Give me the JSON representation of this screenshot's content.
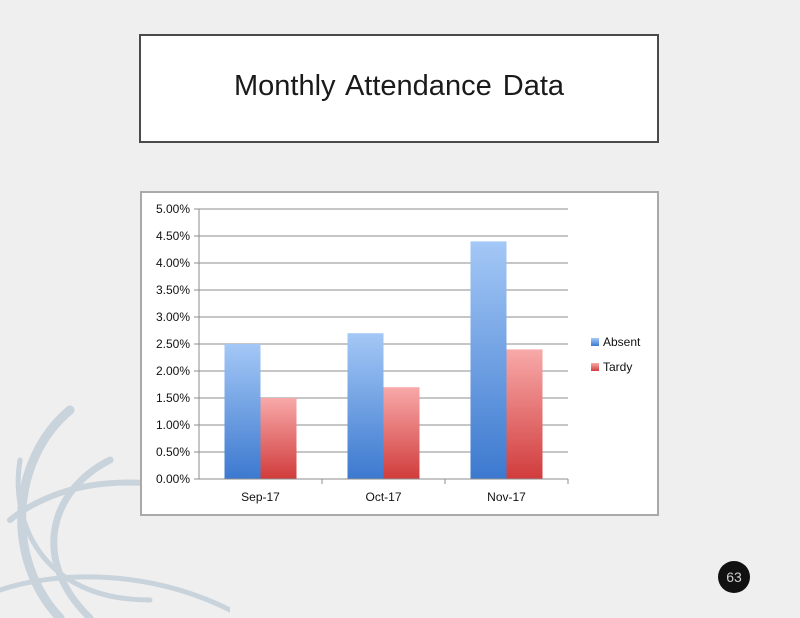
{
  "slide": {
    "title": "Monthly Attendance Data",
    "page_number": "63"
  },
  "colors": {
    "absent_top": "#a4c8f6",
    "absent_bottom": "#3c79cf",
    "tardy_top": "#f8a9a9",
    "tardy_bottom": "#d13c3c",
    "grid": "#8c8c8c"
  },
  "chart_data": {
    "type": "bar",
    "title": "",
    "xlabel": "",
    "ylabel": "",
    "categories": [
      "Sep-17",
      "Oct-17",
      "Nov-17"
    ],
    "series": [
      {
        "name": "Absent",
        "values": [
          0.025,
          0.027,
          0.044
        ]
      },
      {
        "name": "Tardy",
        "values": [
          0.015,
          0.017,
          0.024
        ]
      }
    ],
    "ylim": [
      0,
      0.05
    ],
    "yticks": [
      "0.00%",
      "0.50%",
      "1.00%",
      "1.50%",
      "2.00%",
      "2.50%",
      "3.00%",
      "3.50%",
      "4.00%",
      "4.50%",
      "5.00%"
    ],
    "grid": true,
    "legend_position": "right"
  }
}
